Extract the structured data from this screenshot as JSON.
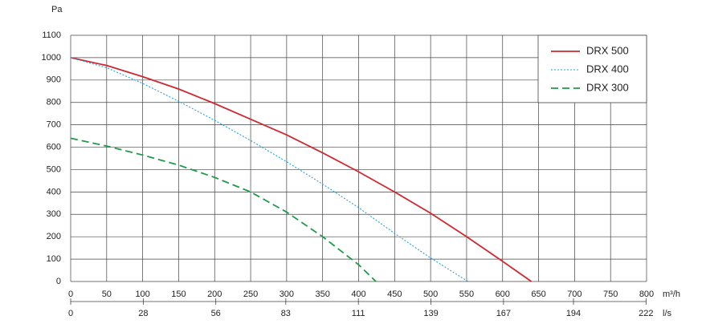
{
  "chart_data": {
    "type": "line",
    "y_label": "Pa",
    "x_label": "m³/h",
    "x2_label": "l/s",
    "xlim": [
      0,
      800
    ],
    "xticks": [
      0,
      50,
      100,
      150,
      200,
      250,
      300,
      350,
      400,
      450,
      500,
      550,
      600,
      650,
      700,
      750,
      800
    ],
    "x2lim": [
      0,
      222.2
    ],
    "x2ticks": [
      0,
      28,
      56,
      83,
      111,
      139,
      167,
      194,
      222
    ],
    "ylim": [
      0,
      1100
    ],
    "yticks": [
      0,
      100,
      200,
      300,
      400,
      500,
      600,
      700,
      800,
      900,
      1000,
      1100
    ],
    "grid": true,
    "legend": "top-right",
    "series": [
      {
        "name": "DRX 500",
        "color": "#d0282e",
        "dash": "solid",
        "x": [
          0,
          50,
          100,
          150,
          200,
          250,
          300,
          350,
          400,
          450,
          500,
          550,
          600,
          640
        ],
        "values": [
          1000,
          965,
          915,
          860,
          795,
          725,
          655,
          575,
          490,
          400,
          305,
          200,
          90,
          0
        ]
      },
      {
        "name": "DRX 400",
        "color": "#2a9fd8",
        "dash": "dotted",
        "x": [
          0,
          50,
          100,
          150,
          200,
          250,
          300,
          350,
          400,
          450,
          500,
          552
        ],
        "values": [
          1000,
          955,
          885,
          805,
          720,
          630,
          535,
          435,
          330,
          215,
          105,
          0
        ]
      },
      {
        "name": "DRX 300",
        "color": "#1f9a48",
        "dash": "dashed",
        "x": [
          0,
          50,
          100,
          150,
          200,
          250,
          300,
          350,
          400,
          424
        ],
        "values": [
          640,
          605,
          565,
          520,
          465,
          400,
          310,
          200,
          75,
          0
        ]
      }
    ]
  }
}
